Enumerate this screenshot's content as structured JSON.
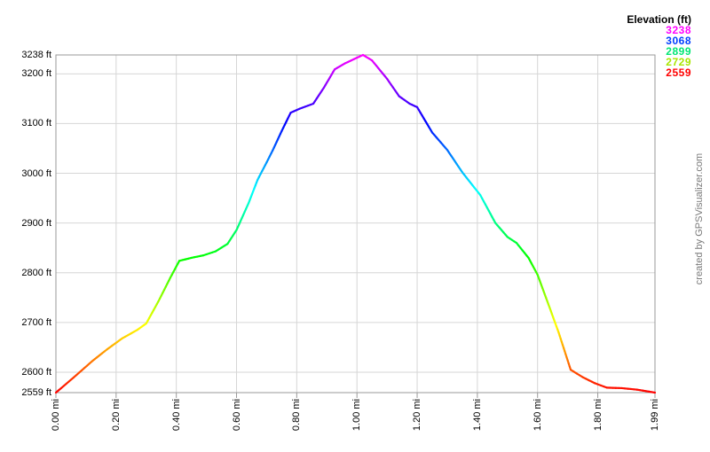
{
  "chart_data": {
    "type": "line",
    "x_unit": "mi",
    "y_unit": "ft",
    "xlim": [
      0,
      1.99
    ],
    "ylim": [
      2559,
      3238
    ],
    "grid": true,
    "legend_position": "top-right",
    "x_ticks": [
      {
        "mile": 0.0,
        "label": "0.00 mi"
      },
      {
        "mile": 0.2,
        "label": "0.20 mi"
      },
      {
        "mile": 0.4,
        "label": "0.40 mi"
      },
      {
        "mile": 0.6,
        "label": "0.60 mi"
      },
      {
        "mile": 0.8,
        "label": "0.80 mi"
      },
      {
        "mile": 1.0,
        "label": "1.00 mi"
      },
      {
        "mile": 1.2,
        "label": "1.20 mi"
      },
      {
        "mile": 1.4,
        "label": "1.40 mi"
      },
      {
        "mile": 1.6,
        "label": "1.60 mi"
      },
      {
        "mile": 1.8,
        "label": "1.80 mi"
      },
      {
        "mile": 1.99,
        "label": "1.99 mi"
      }
    ],
    "y_ticks": [
      {
        "ft": 3238,
        "label": "3238 ft"
      },
      {
        "ft": 3200,
        "label": "3200 ft"
      },
      {
        "ft": 3100,
        "label": "3100 ft"
      },
      {
        "ft": 3000,
        "label": "3000 ft"
      },
      {
        "ft": 2900,
        "label": "2900 ft"
      },
      {
        "ft": 2800,
        "label": "2800 ft"
      },
      {
        "ft": 2700,
        "label": "2700 ft"
      },
      {
        "ft": 2600,
        "label": "2600 ft"
      },
      {
        "ft": 2559,
        "label": "2559 ft"
      }
    ],
    "series": [
      {
        "name": "Elevation (ft)",
        "points": [
          [
            0.0,
            2559
          ],
          [
            0.06,
            2590
          ],
          [
            0.12,
            2622
          ],
          [
            0.17,
            2646
          ],
          [
            0.22,
            2668
          ],
          [
            0.27,
            2685
          ],
          [
            0.3,
            2698
          ],
          [
            0.34,
            2742
          ],
          [
            0.38,
            2790
          ],
          [
            0.41,
            2824
          ],
          [
            0.45,
            2830
          ],
          [
            0.49,
            2835
          ],
          [
            0.53,
            2843
          ],
          [
            0.57,
            2858
          ],
          [
            0.6,
            2886
          ],
          [
            0.64,
            2940
          ],
          [
            0.67,
            2987
          ],
          [
            0.7,
            3022
          ],
          [
            0.72,
            3046
          ],
          [
            0.75,
            3085
          ],
          [
            0.78,
            3122
          ],
          [
            0.81,
            3130
          ],
          [
            0.855,
            3140
          ],
          [
            0.89,
            3172
          ],
          [
            0.926,
            3209
          ],
          [
            0.96,
            3221
          ],
          [
            1.02,
            3238
          ],
          [
            1.05,
            3227
          ],
          [
            1.1,
            3190
          ],
          [
            1.14,
            3155
          ],
          [
            1.175,
            3140
          ],
          [
            1.2,
            3133
          ],
          [
            1.25,
            3082
          ],
          [
            1.3,
            3047
          ],
          [
            1.35,
            3002
          ],
          [
            1.41,
            2956
          ],
          [
            1.46,
            2900
          ],
          [
            1.5,
            2872
          ],
          [
            1.53,
            2860
          ],
          [
            1.57,
            2830
          ],
          [
            1.6,
            2796
          ],
          [
            1.64,
            2730
          ],
          [
            1.67,
            2680
          ],
          [
            1.71,
            2605
          ],
          [
            1.75,
            2590
          ],
          [
            1.79,
            2578
          ],
          [
            1.83,
            2569
          ],
          [
            1.88,
            2568
          ],
          [
            1.93,
            2565
          ],
          [
            1.99,
            2559
          ]
        ]
      }
    ],
    "color_scale": {
      "type": "rainbow-by-elevation",
      "min_elev": 2559,
      "max_elev": 3238,
      "hue_start_deg": 0,
      "hue_end_deg": 300,
      "saturation_pct": 100,
      "lightness_pct": 50
    }
  },
  "legend": {
    "title": "Elevation (ft)",
    "entries": [
      {
        "value": "3238",
        "color": "#ff00ff"
      },
      {
        "value": "3068",
        "color": "#0040ff"
      },
      {
        "value": "2899",
        "color": "#00e673"
      },
      {
        "value": "2729",
        "color": "#a8e600"
      },
      {
        "value": "2559",
        "color": "#ff0000"
      }
    ]
  },
  "watermark": "created by GPSVisualizer.com",
  "colors": {
    "grid": "#d6d6d6",
    "frame": "#9a9a9a",
    "tick": "#9a9a9a",
    "axis_text": "#000000",
    "watermark_text": "#7a7a7a",
    "background": "#ffffff"
  }
}
